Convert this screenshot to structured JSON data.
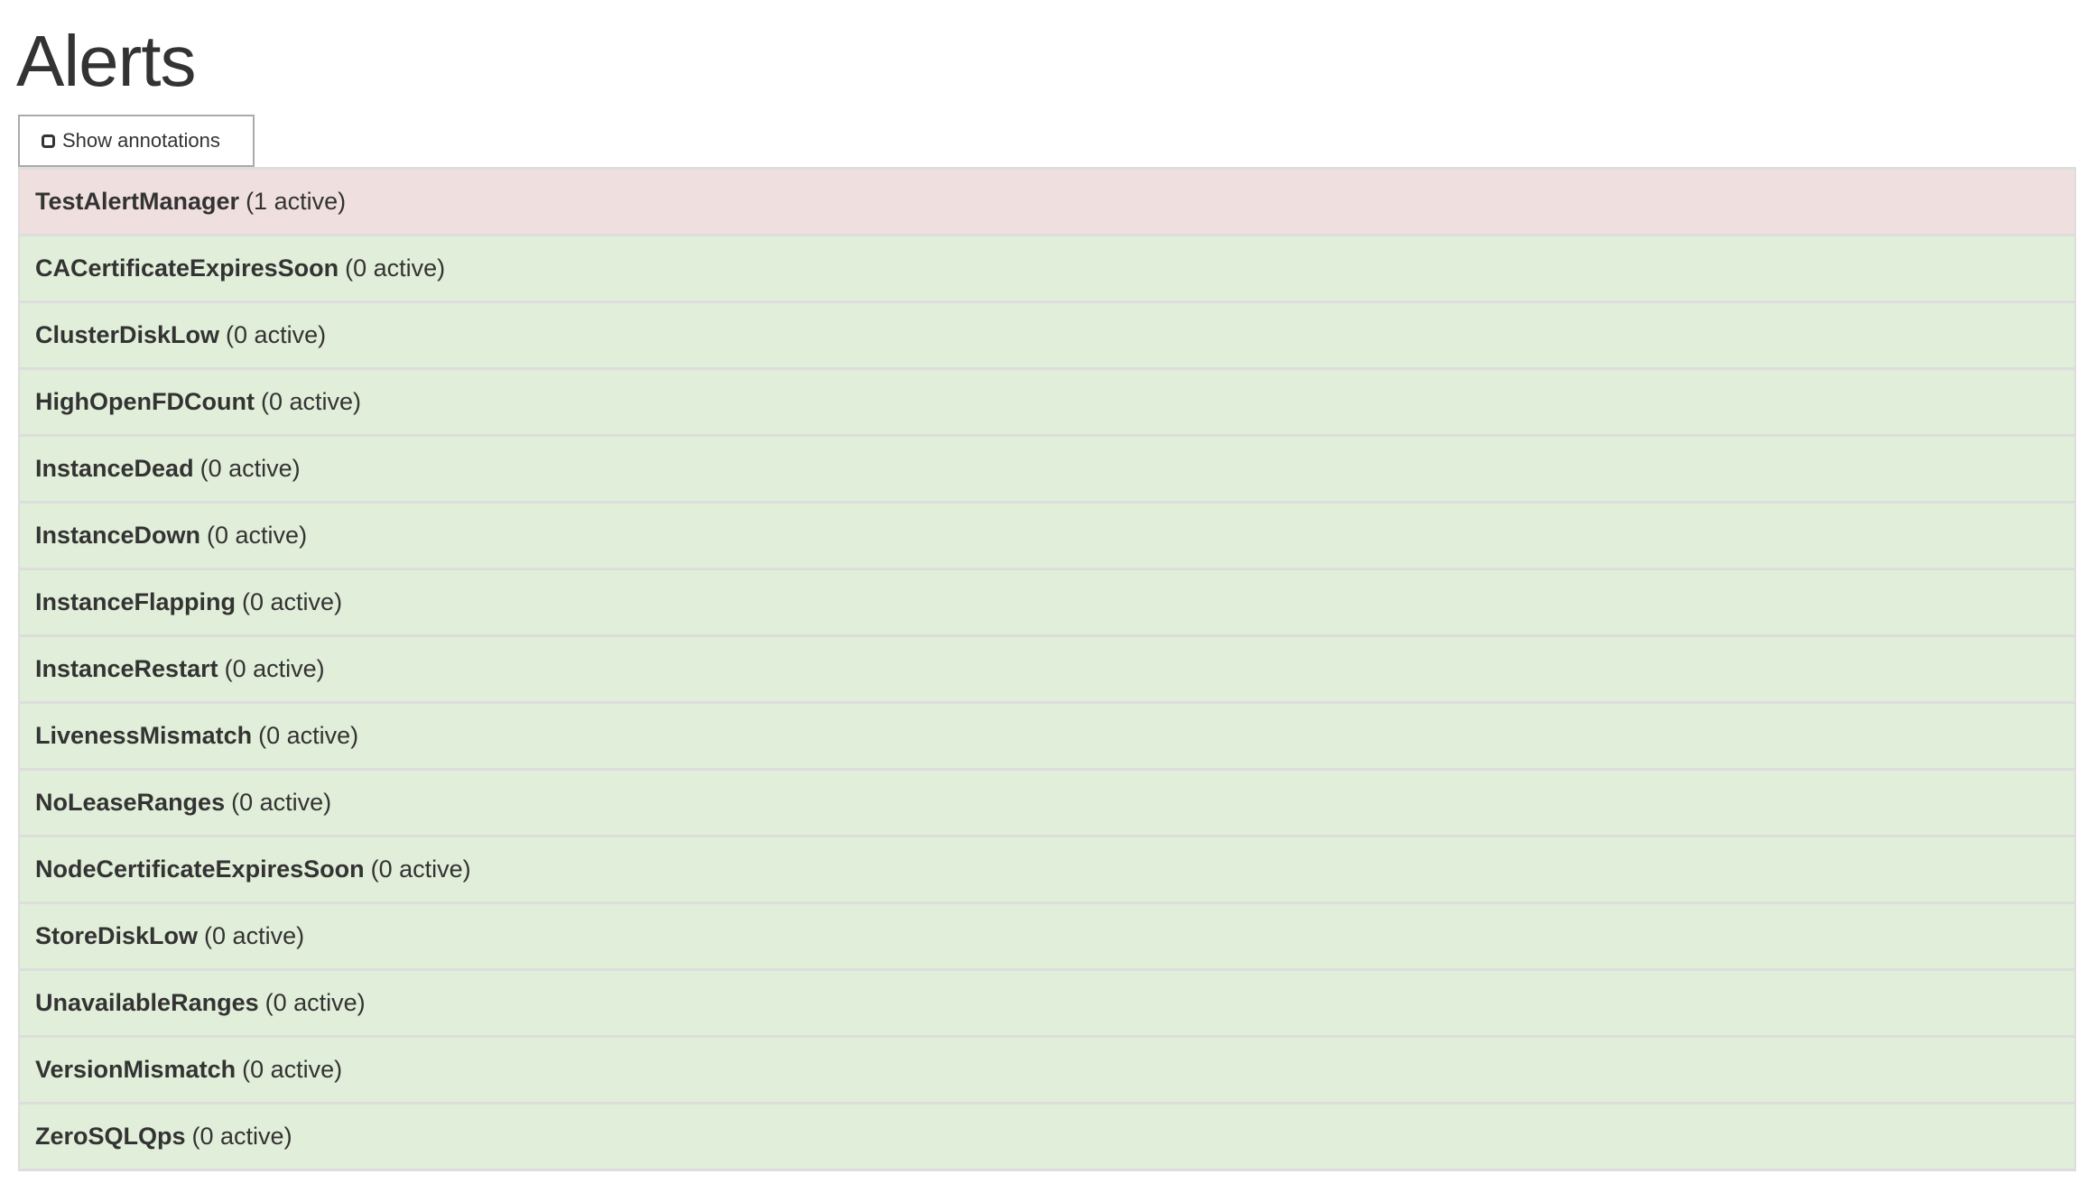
{
  "page": {
    "title": "Alerts"
  },
  "toolbar": {
    "show_annotations_label": "Show annotations",
    "show_annotations_checked": false
  },
  "colors": {
    "firing": "#f0dfdf",
    "inactive": "#e1eed9"
  },
  "alerts": [
    {
      "name": "TestAlertManager",
      "status": "(1 active)"
    },
    {
      "name": "CACertificateExpiresSoon",
      "status": "(0 active)"
    },
    {
      "name": "ClusterDiskLow",
      "status": "(0 active)"
    },
    {
      "name": "HighOpenFDCount",
      "status": "(0 active)"
    },
    {
      "name": "InstanceDead",
      "status": "(0 active)"
    },
    {
      "name": "InstanceDown",
      "status": "(0 active)"
    },
    {
      "name": "InstanceFlapping",
      "status": "(0 active)"
    },
    {
      "name": "InstanceRestart",
      "status": "(0 active)"
    },
    {
      "name": "LivenessMismatch",
      "status": "(0 active)"
    },
    {
      "name": "NoLeaseRanges",
      "status": "(0 active)"
    },
    {
      "name": "NodeCertificateExpiresSoon",
      "status": "(0 active)"
    },
    {
      "name": "StoreDiskLow",
      "status": "(0 active)"
    },
    {
      "name": "UnavailableRanges",
      "status": "(0 active)"
    },
    {
      "name": "VersionMismatch",
      "status": "(0 active)"
    },
    {
      "name": "ZeroSQLQps",
      "status": "(0 active)"
    }
  ]
}
